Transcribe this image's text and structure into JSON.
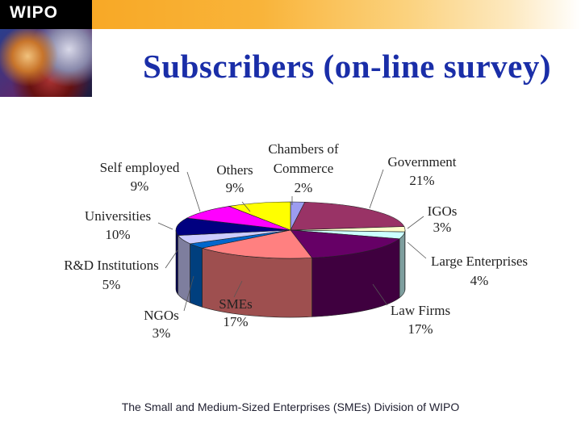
{
  "header": {
    "logo": "WIPO",
    "title": "Subscribers (on-line survey)"
  },
  "chart_data": {
    "type": "pie",
    "title": "",
    "slices": [
      {
        "label": "Chambers of Commerce",
        "value": 2,
        "value_label": "2%",
        "color": "#9c9cf0"
      },
      {
        "label": "Government",
        "value": 21,
        "value_label": "21%",
        "color": "#993366"
      },
      {
        "label": "IGOs",
        "value": 3,
        "value_label": "3%",
        "color": "#ffffcc"
      },
      {
        "label": "Large Enterprises",
        "value": 4,
        "value_label": "4%",
        "color": "#ccffff"
      },
      {
        "label": "Law Firms",
        "value": 17,
        "value_label": "17%",
        "color": "#660066"
      },
      {
        "label": "SMEs",
        "value": 17,
        "value_label": "17%",
        "color": "#ff8080"
      },
      {
        "label": "NGOs",
        "value": 3,
        "value_label": "3%",
        "color": "#0066cc"
      },
      {
        "label": "R&D Institutions",
        "value": 5,
        "value_label": "5%",
        "color": "#ccccff"
      },
      {
        "label": "Universities",
        "value": 10,
        "value_label": "10%",
        "color": "#000080"
      },
      {
        "label": "Self employed",
        "value": 9,
        "value_label": "9%",
        "color": "#ff00ff"
      },
      {
        "label": "Others",
        "value": 9,
        "value_label": "9%",
        "color": "#ffff00"
      }
    ],
    "label_lines": [
      {
        "slice": 0,
        "lines": [
          "Chambers of",
          "Commerce",
          "2%"
        ]
      },
      {
        "slice": 1,
        "lines": [
          "Government",
          "21%"
        ]
      },
      {
        "slice": 2,
        "lines": [
          "IGOs",
          "3%"
        ]
      },
      {
        "slice": 3,
        "lines": [
          "Large Enterprises",
          "4%"
        ]
      },
      {
        "slice": 4,
        "lines": [
          "Law Firms",
          "17%"
        ]
      },
      {
        "slice": 5,
        "lines": [
          "SMEs",
          "17%"
        ]
      },
      {
        "slice": 6,
        "lines": [
          "NGOs",
          "3%"
        ]
      },
      {
        "slice": 7,
        "lines": [
          "R&D Institutions",
          "5%"
        ]
      },
      {
        "slice": 8,
        "lines": [
          "Universities",
          "10%"
        ]
      },
      {
        "slice": 9,
        "lines": [
          "Self employed",
          "9%"
        ]
      },
      {
        "slice": 10,
        "lines": [
          "Others",
          "9%"
        ]
      }
    ]
  },
  "footer": {
    "text": "The Small and Medium-Sized Enterprises (SMEs) Division of WIPO"
  }
}
